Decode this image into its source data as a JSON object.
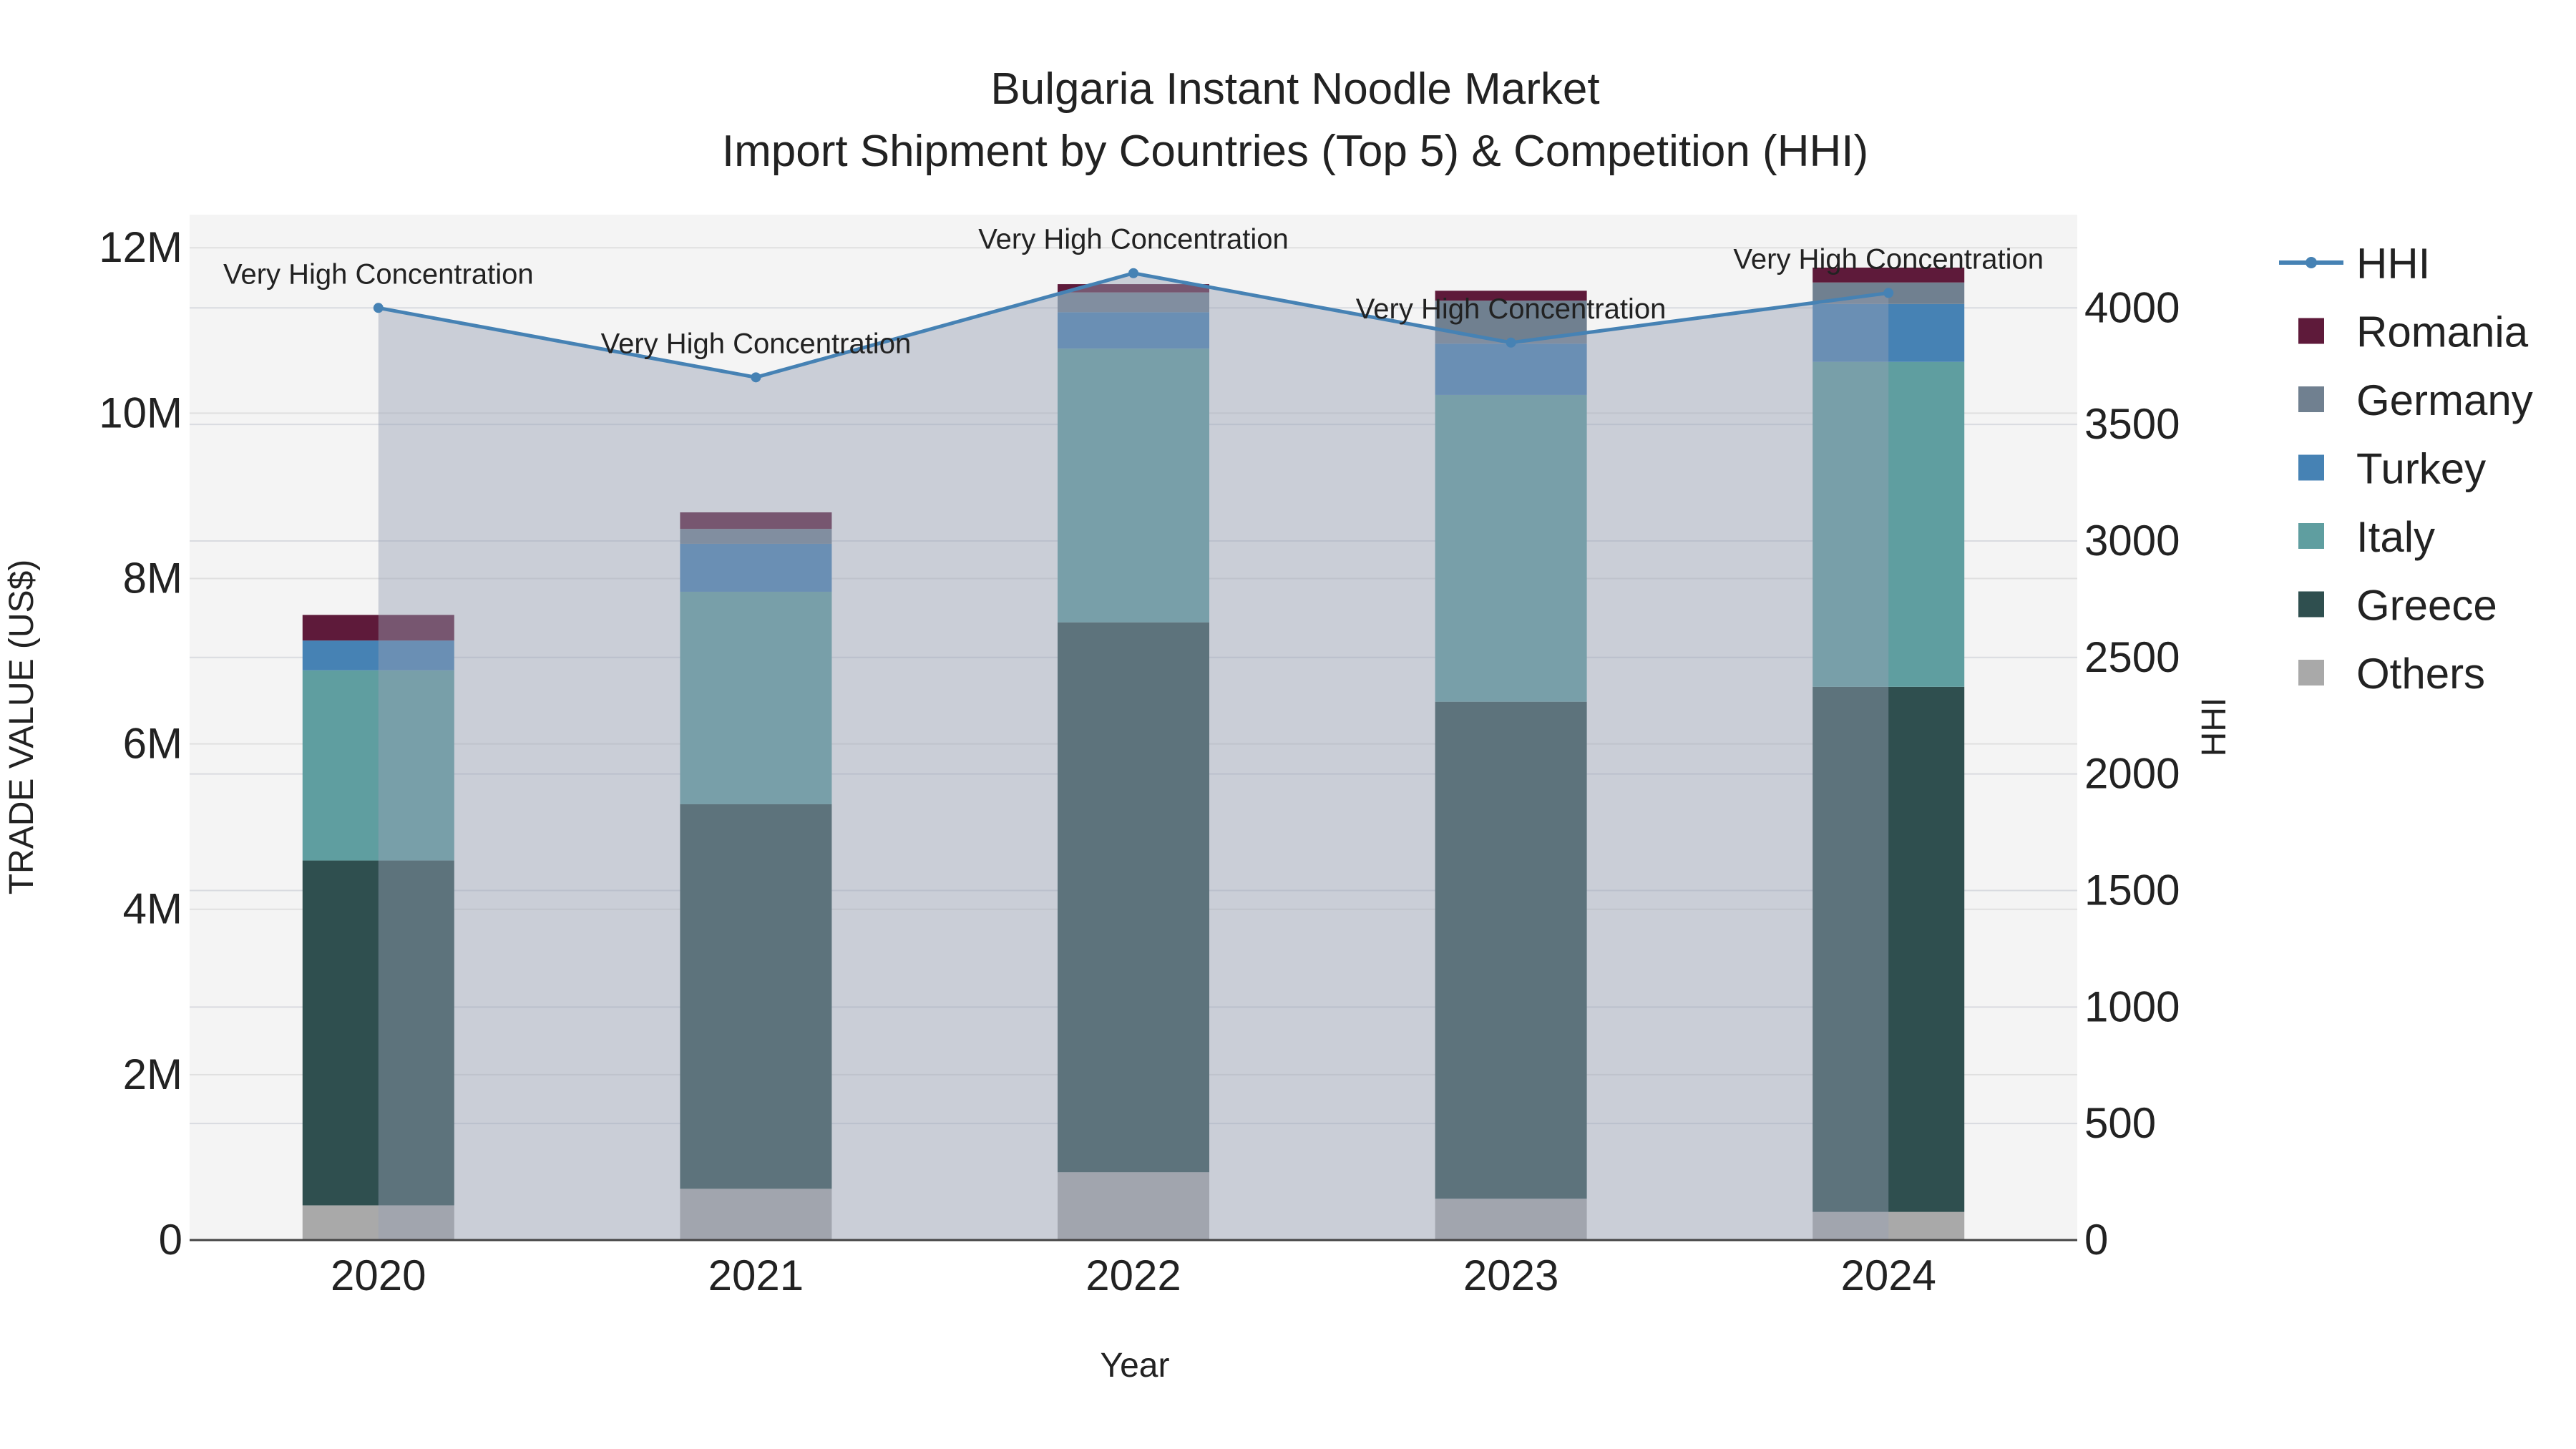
{
  "chart_data": {
    "type": "bar",
    "title_line1": "Bulgaria Instant Noodle Market",
    "title_line2": "Import Shipment by Countries (Top 5) & Competition (HHI)",
    "xlabel": "Year",
    "ylabel": "TRADE VALUE (US$)",
    "y2label": "HHI",
    "categories": [
      "2020",
      "2021",
      "2022",
      "2023",
      "2024"
    ],
    "ylim": [
      0,
      12400000
    ],
    "y_ticks": [
      0,
      2000000,
      4000000,
      6000000,
      8000000,
      10000000,
      12000000
    ],
    "y_tick_labels": [
      "0",
      "2M",
      "4M",
      "6M",
      "8M",
      "10M",
      "12M"
    ],
    "y2lim": [
      0,
      4400
    ],
    "y2_ticks": [
      0,
      500,
      1000,
      1500,
      2000,
      2500,
      3000,
      3500,
      4000
    ],
    "y2_tick_labels": [
      "0",
      "500",
      "1000",
      "1500",
      "2000",
      "2500",
      "3000",
      "3500",
      "4000"
    ],
    "stacked": true,
    "series": [
      {
        "name": "Others",
        "color": "#a9a9a9",
        "values": [
          420000,
          620000,
          820000,
          500000,
          340000
        ]
      },
      {
        "name": "Greece",
        "color": "#2f4f4f",
        "values": [
          4170000,
          4650000,
          6650000,
          6010000,
          6350000
        ]
      },
      {
        "name": "Italy",
        "color": "#5f9ea0",
        "values": [
          2300000,
          2570000,
          3310000,
          3710000,
          3930000
        ]
      },
      {
        "name": "Turkey",
        "color": "#4682b4",
        "values": [
          360000,
          580000,
          440000,
          620000,
          700000
        ]
      },
      {
        "name": "Germany",
        "color": "#708090",
        "values": [
          0,
          180000,
          240000,
          520000,
          260000
        ]
      },
      {
        "name": "Romania",
        "color": "#5e1a3a",
        "values": [
          310000,
          200000,
          100000,
          120000,
          180000
        ]
      }
    ],
    "line": {
      "name": "HHI",
      "color": "#4682b4",
      "values": [
        4000,
        3702,
        4149,
        3851,
        4064
      ]
    },
    "annotations": [
      "Very High Concentration",
      "Very High Concentration",
      "Very High Concentration",
      "Very High Concentration",
      "Very High Concentration"
    ],
    "legend_order": [
      "HHI",
      "Romania",
      "Germany",
      "Turkey",
      "Italy",
      "Greece",
      "Others"
    ],
    "legend_position": "right",
    "grid": true
  }
}
